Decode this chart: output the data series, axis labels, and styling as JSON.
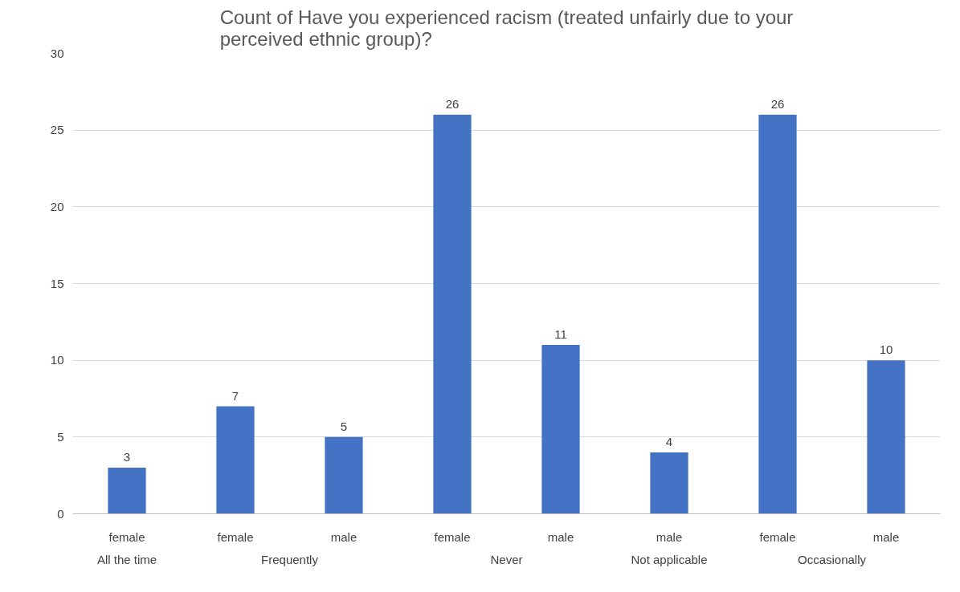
{
  "chart_data": {
    "type": "bar",
    "title": "Count of Have you experienced racism (treated unfairly due to your perceived ethnic group)?",
    "categories": [
      "female",
      "female",
      "male",
      "female",
      "male",
      "male",
      "female",
      "male"
    ],
    "values": [
      3,
      7,
      5,
      26,
      11,
      4,
      26,
      10
    ],
    "color": "#4472c4",
    "annotations": [
      "All the time",
      "Frequently",
      "Never",
      "Not applicable",
      "Occasionally"
    ],
    "ylim": [
      0,
      30
    ],
    "yticks": [
      0,
      5,
      10,
      15,
      20,
      25,
      30
    ],
    "grid": "y",
    "data_labels": true
  }
}
